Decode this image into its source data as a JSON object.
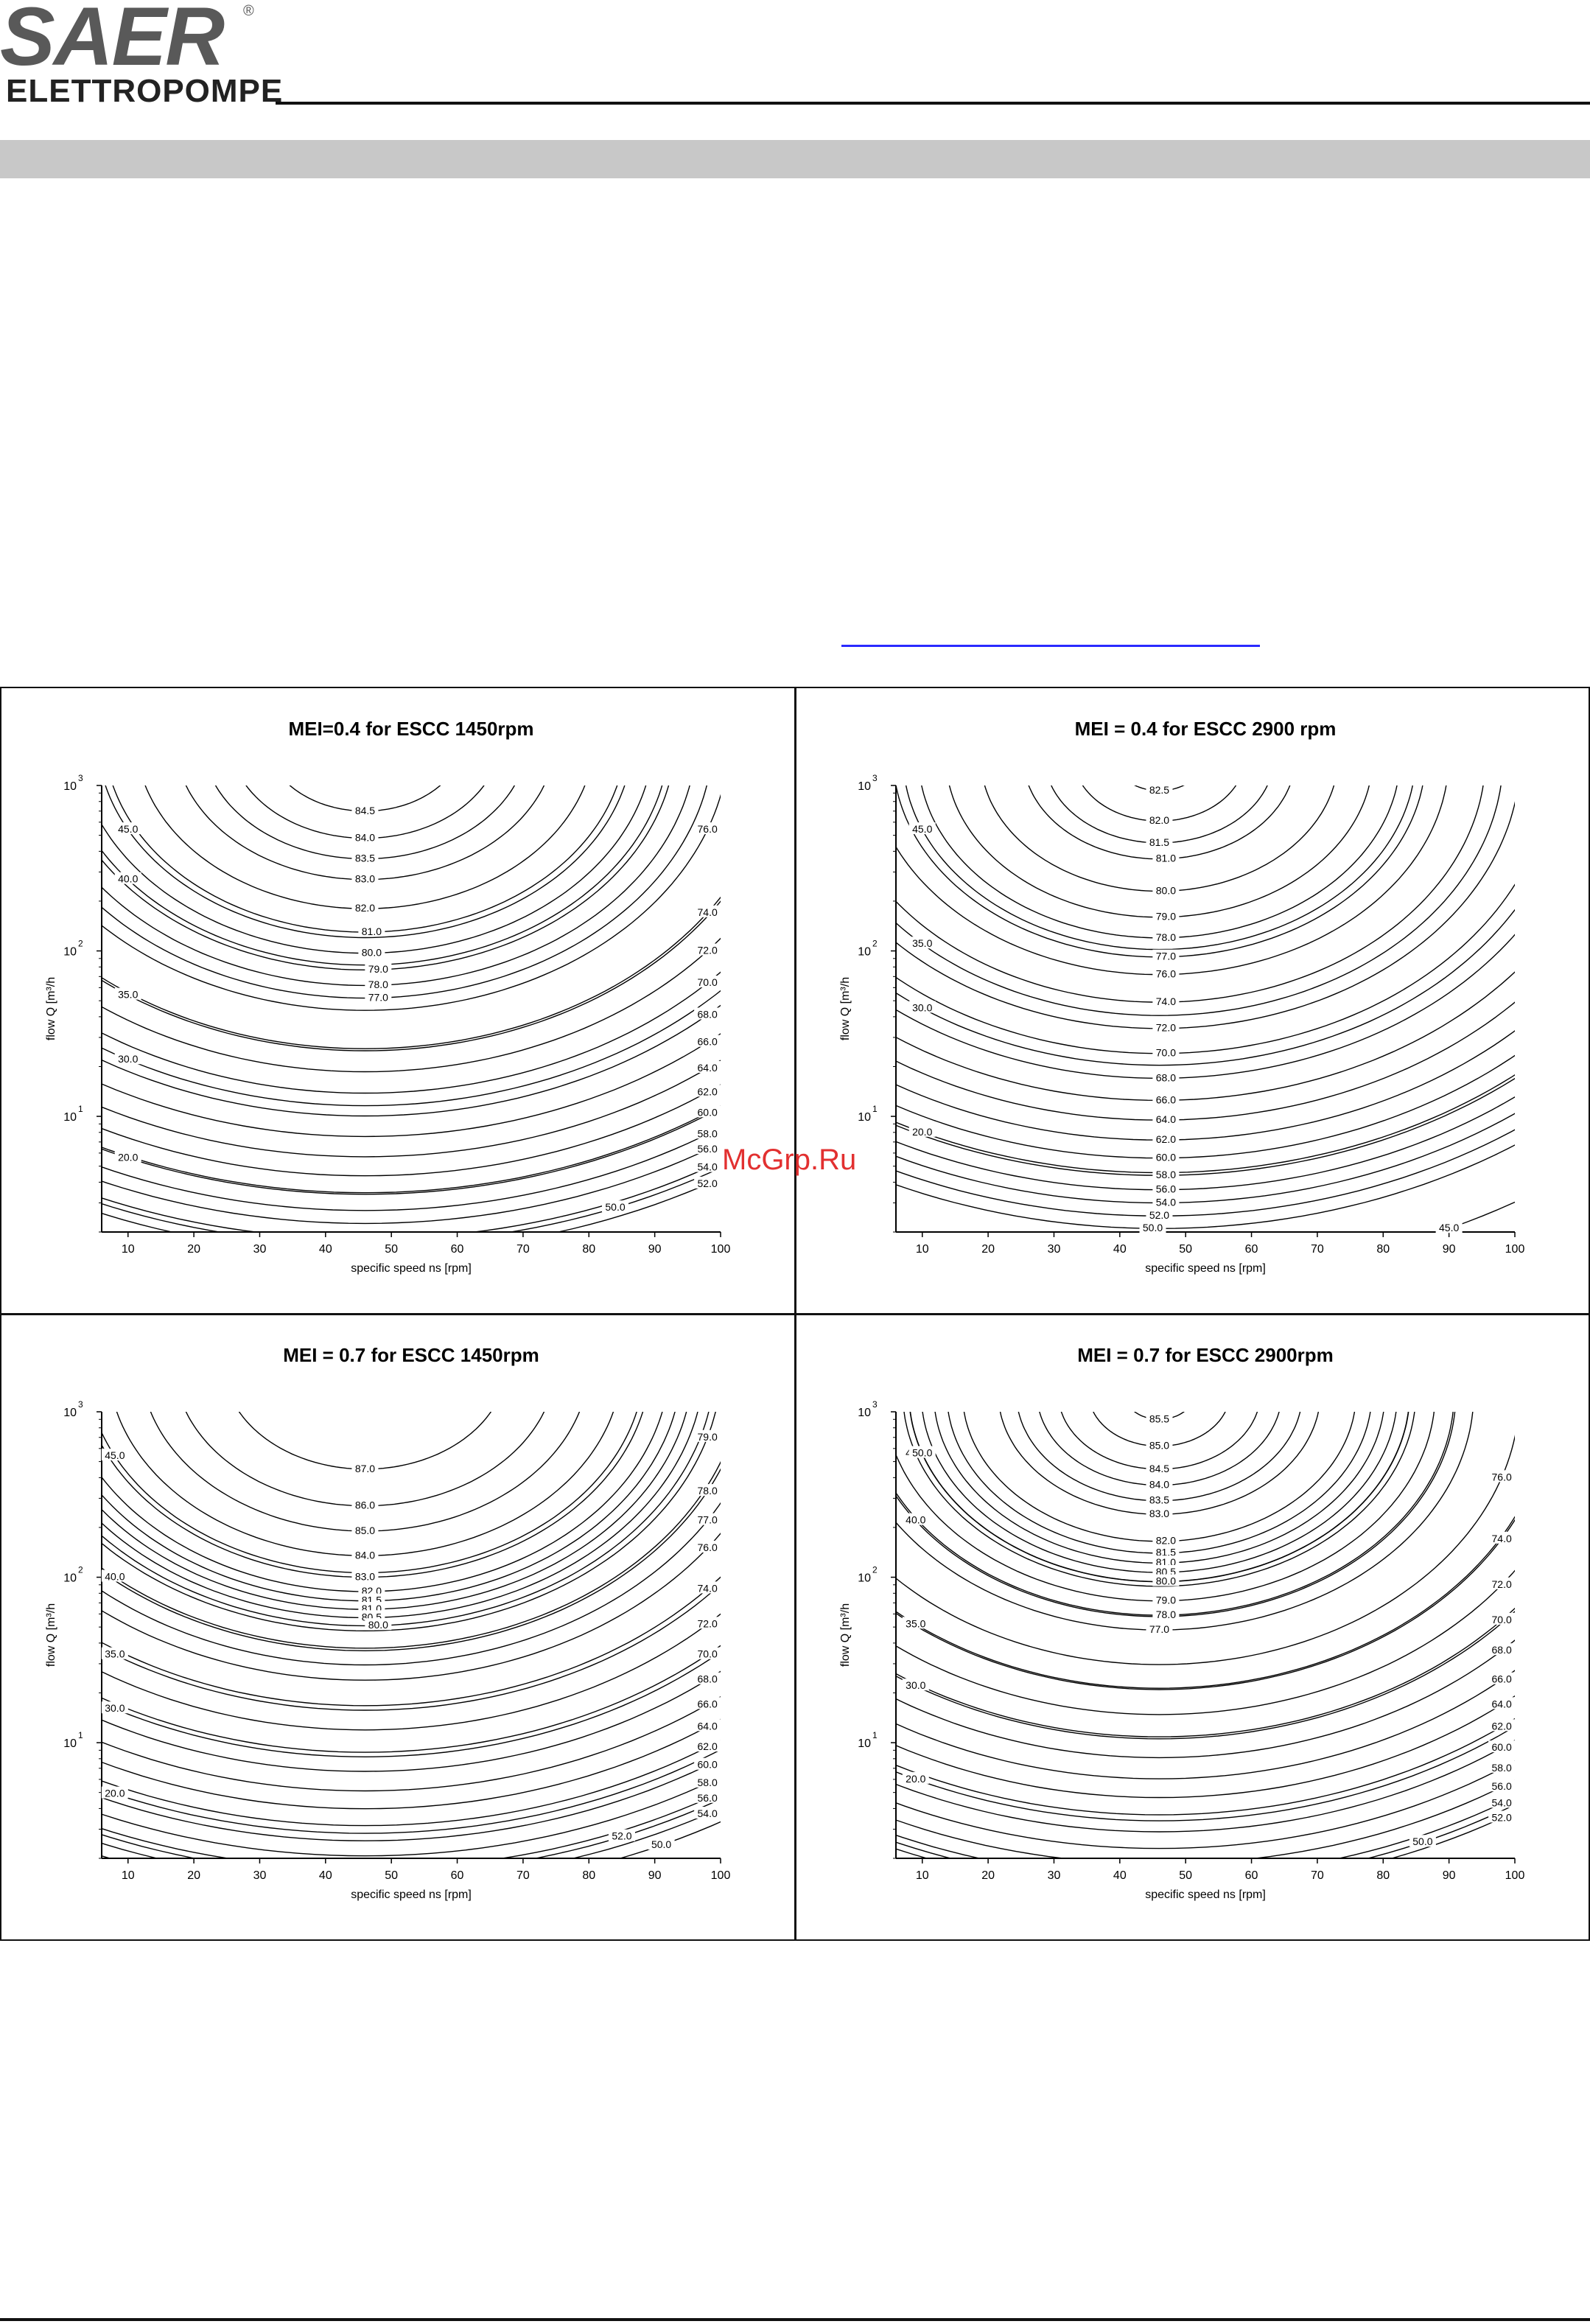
{
  "header": {
    "logo_text": "SAER",
    "logo_sub": "ELETTROPOMPE",
    "registered_mark": "®"
  },
  "watermark": "McGrp.Ru",
  "chart_data": [
    {
      "type": "contour",
      "title": "MEI=0.4 for ESCC 1450rpm",
      "xlabel": "specific speed ns [rpm]",
      "ylabel": "flow Q [m³/h",
      "xlim": [
        6,
        100
      ],
      "ylim": [
        2,
        1000
      ],
      "y_scale": "log",
      "x_ticks": [
        10,
        20,
        30,
        40,
        50,
        60,
        70,
        80,
        90,
        100
      ],
      "y_ticks": [
        {
          "base": "10",
          "exp": "1",
          "value": 10
        },
        {
          "base": "10",
          "exp": "2",
          "value": 100
        },
        {
          "base": "10",
          "exp": "3",
          "value": 1000
        }
      ],
      "optimum": {
        "ns": 46,
        "q": 2000
      },
      "contour_labels": [
        {
          "text": "84.5",
          "ns": 46,
          "q": 700
        },
        {
          "text": "84.0",
          "ns": 46,
          "q": 480
        },
        {
          "text": "83.5",
          "ns": 46,
          "q": 360
        },
        {
          "text": "83.0",
          "ns": 46,
          "q": 270
        },
        {
          "text": "82.0",
          "ns": 46,
          "q": 180
        },
        {
          "text": "81.0",
          "ns": 47,
          "q": 130
        },
        {
          "text": "80.0",
          "ns": 47,
          "q": 97
        },
        {
          "text": "79.0",
          "ns": 48,
          "q": 77
        },
        {
          "text": "78.0",
          "ns": 48,
          "q": 62
        },
        {
          "text": "77.0",
          "ns": 48,
          "q": 52
        },
        {
          "text": "76.0",
          "ns": 98,
          "q": 540
        },
        {
          "text": "74.0",
          "ns": 98,
          "q": 170
        },
        {
          "text": "72.0",
          "ns": 98,
          "q": 100
        },
        {
          "text": "70.0",
          "ns": 98,
          "q": 64
        },
        {
          "text": "68.0",
          "ns": 98,
          "q": 41
        },
        {
          "text": "66.0",
          "ns": 98,
          "q": 28
        },
        {
          "text": "64.0",
          "ns": 98,
          "q": 19.5
        },
        {
          "text": "62.0",
          "ns": 98,
          "q": 14
        },
        {
          "text": "60.0",
          "ns": 98,
          "q": 10.5
        },
        {
          "text": "58.0",
          "ns": 98,
          "q": 7.8
        },
        {
          "text": "56.0",
          "ns": 98,
          "q": 6.3
        },
        {
          "text": "54.0",
          "ns": 98,
          "q": 4.9
        },
        {
          "text": "52.0",
          "ns": 98,
          "q": 3.9
        },
        {
          "text": "50.0",
          "ns": 84,
          "q": 2.8
        },
        {
          "text": "45.0",
          "ns": 10,
          "q": 540
        },
        {
          "text": "40.0",
          "ns": 10,
          "q": 270
        },
        {
          "text": "35.0",
          "ns": 10,
          "q": 54
        },
        {
          "text": "30.0",
          "ns": 10,
          "q": 22
        },
        {
          "text": "20.0",
          "ns": 10,
          "q": 5.6
        }
      ]
    },
    {
      "type": "contour",
      "title": "MEI = 0.4 for ESCC 2900 rpm",
      "xlabel": "specific speed ns [rpm]",
      "ylabel": "flow Q [m³/h",
      "xlim": [
        6,
        100
      ],
      "ylim": [
        2,
        1000
      ],
      "y_scale": "log",
      "x_ticks": [
        10,
        20,
        30,
        40,
        50,
        60,
        70,
        80,
        90,
        100
      ],
      "y_ticks": [
        {
          "base": "10",
          "exp": "1",
          "value": 10
        },
        {
          "base": "10",
          "exp": "2",
          "value": 100
        },
        {
          "base": "10",
          "exp": "3",
          "value": 1000
        }
      ],
      "optimum": {
        "ns": 46,
        "q": 1500
      },
      "contour_labels": [
        {
          "text": "82.5",
          "ns": 46,
          "q": 930
        },
        {
          "text": "82.0",
          "ns": 46,
          "q": 610
        },
        {
          "text": "81.5",
          "ns": 46,
          "q": 450
        },
        {
          "text": "81.0",
          "ns": 47,
          "q": 360
        },
        {
          "text": "80.0",
          "ns": 47,
          "q": 230
        },
        {
          "text": "79.0",
          "ns": 47,
          "q": 160
        },
        {
          "text": "78.0",
          "ns": 47,
          "q": 120
        },
        {
          "text": "77.0",
          "ns": 47,
          "q": 92
        },
        {
          "text": "76.0",
          "ns": 47,
          "q": 72
        },
        {
          "text": "74.0",
          "ns": 47,
          "q": 49
        },
        {
          "text": "72.0",
          "ns": 47,
          "q": 34
        },
        {
          "text": "70.0",
          "ns": 47,
          "q": 24
        },
        {
          "text": "68.0",
          "ns": 47,
          "q": 17
        },
        {
          "text": "66.0",
          "ns": 47,
          "q": 12.5
        },
        {
          "text": "64.0",
          "ns": 47,
          "q": 9.5
        },
        {
          "text": "62.0",
          "ns": 47,
          "q": 7.2
        },
        {
          "text": "60.0",
          "ns": 47,
          "q": 5.6
        },
        {
          "text": "58.0",
          "ns": 47,
          "q": 4.4
        },
        {
          "text": "56.0",
          "ns": 47,
          "q": 3.6
        },
        {
          "text": "54.0",
          "ns": 47,
          "q": 3.0
        },
        {
          "text": "52.0",
          "ns": 46,
          "q": 2.5
        },
        {
          "text": "50.0",
          "ns": 45,
          "q": 2.1
        },
        {
          "text": "45.0",
          "ns": 90,
          "q": 2.1
        },
        {
          "text": "45.0",
          "ns": 10,
          "q": 540
        },
        {
          "text": "35.0",
          "ns": 10,
          "q": 110
        },
        {
          "text": "30.0",
          "ns": 10,
          "q": 45
        },
        {
          "text": "20.0",
          "ns": 10,
          "q": 8
        }
      ]
    },
    {
      "type": "contour",
      "title": "MEI = 0.7 for ESCC 1450rpm",
      "xlabel": "specific speed ns [rpm]",
      "ylabel": "flow Q [m³/h",
      "xlim": [
        6,
        100
      ],
      "ylim": [
        2,
        1000
      ],
      "y_scale": "log",
      "x_ticks": [
        10,
        20,
        30,
        40,
        50,
        60,
        70,
        80,
        90,
        100
      ],
      "y_ticks": [
        {
          "base": "10",
          "exp": "1",
          "value": 10
        },
        {
          "base": "10",
          "exp": "2",
          "value": 100
        },
        {
          "base": "10",
          "exp": "3",
          "value": 1000
        }
      ],
      "optimum": {
        "ns": 46,
        "q": 2000
      },
      "contour_labels": [
        {
          "text": "87.0",
          "ns": 46,
          "q": 450
        },
        {
          "text": "86.0",
          "ns": 46,
          "q": 270
        },
        {
          "text": "85.0",
          "ns": 46,
          "q": 190
        },
        {
          "text": "84.0",
          "ns": 46,
          "q": 135
        },
        {
          "text": "83.0",
          "ns": 46,
          "q": 100
        },
        {
          "text": "82.0",
          "ns": 47,
          "q": 82
        },
        {
          "text": "81.5",
          "ns": 47,
          "q": 72
        },
        {
          "text": "81.0",
          "ns": 47,
          "q": 64
        },
        {
          "text": "80.5",
          "ns": 47,
          "q": 57
        },
        {
          "text": "80.0",
          "ns": 48,
          "q": 51
        },
        {
          "text": "79.0",
          "ns": 98,
          "q": 700
        },
        {
          "text": "78.0",
          "ns": 98,
          "q": 330
        },
        {
          "text": "77.0",
          "ns": 98,
          "q": 220
        },
        {
          "text": "76.0",
          "ns": 98,
          "q": 150
        },
        {
          "text": "74.0",
          "ns": 98,
          "q": 85
        },
        {
          "text": "72.0",
          "ns": 98,
          "q": 52
        },
        {
          "text": "70.0",
          "ns": 98,
          "q": 34
        },
        {
          "text": "68.0",
          "ns": 98,
          "q": 24
        },
        {
          "text": "66.0",
          "ns": 98,
          "q": 17
        },
        {
          "text": "64.0",
          "ns": 98,
          "q": 12.5
        },
        {
          "text": "62.0",
          "ns": 98,
          "q": 9.4
        },
        {
          "text": "60.0",
          "ns": 98,
          "q": 7.3
        },
        {
          "text": "58.0",
          "ns": 98,
          "q": 5.7
        },
        {
          "text": "56.0",
          "ns": 98,
          "q": 4.6
        },
        {
          "text": "54.0",
          "ns": 98,
          "q": 3.7
        },
        {
          "text": "52.0",
          "ns": 85,
          "q": 2.7
        },
        {
          "text": "50.0",
          "ns": 91,
          "q": 2.4
        },
        {
          "text": "45.0",
          "ns": 8,
          "q": 540
        },
        {
          "text": "40.0",
          "ns": 8,
          "q": 100
        },
        {
          "text": "35.0",
          "ns": 8,
          "q": 34
        },
        {
          "text": "30.0",
          "ns": 8,
          "q": 16
        },
        {
          "text": "20.0",
          "ns": 8,
          "q": 4.9
        }
      ]
    },
    {
      "type": "contour",
      "title": "MEI = 0.7 for ESCC 2900rpm",
      "xlabel": "specific speed ns [rpm]",
      "ylabel": "flow Q [m³/h",
      "xlim": [
        6,
        100
      ],
      "ylim": [
        2,
        1000
      ],
      "y_scale": "log",
      "x_ticks": [
        10,
        20,
        30,
        40,
        50,
        60,
        70,
        80,
        90,
        100
      ],
      "y_ticks": [
        {
          "base": "10",
          "exp": "1",
          "value": 10
        },
        {
          "base": "10",
          "exp": "2",
          "value": 100
        },
        {
          "base": "10",
          "exp": "3",
          "value": 1000
        }
      ],
      "optimum": {
        "ns": 46,
        "q": 1300
      },
      "contour_labels": [
        {
          "text": "85.5",
          "ns": 46,
          "q": 900
        },
        {
          "text": "85.0",
          "ns": 46,
          "q": 620
        },
        {
          "text": "84.5",
          "ns": 46,
          "q": 450
        },
        {
          "text": "84.0",
          "ns": 46,
          "q": 360
        },
        {
          "text": "83.5",
          "ns": 46,
          "q": 290
        },
        {
          "text": "83.0",
          "ns": 46,
          "q": 240
        },
        {
          "text": "82.0",
          "ns": 47,
          "q": 165
        },
        {
          "text": "81.5",
          "ns": 47,
          "q": 140
        },
        {
          "text": "81.0",
          "ns": 47,
          "q": 122
        },
        {
          "text": "80.5",
          "ns": 47,
          "q": 107
        },
        {
          "text": "80.0",
          "ns": 47,
          "q": 94
        },
        {
          "text": "79.0",
          "ns": 47,
          "q": 72
        },
        {
          "text": "78.0",
          "ns": 47,
          "q": 59
        },
        {
          "text": "77.0",
          "ns": 46,
          "q": 48
        },
        {
          "text": "76.0",
          "ns": 98,
          "q": 400
        },
        {
          "text": "74.0",
          "ns": 98,
          "q": 170
        },
        {
          "text": "72.0",
          "ns": 98,
          "q": 90
        },
        {
          "text": "70.0",
          "ns": 98,
          "q": 55
        },
        {
          "text": "68.0",
          "ns": 98,
          "q": 36
        },
        {
          "text": "66.0",
          "ns": 98,
          "q": 24
        },
        {
          "text": "64.0",
          "ns": 98,
          "q": 17
        },
        {
          "text": "62.0",
          "ns": 98,
          "q": 12.5
        },
        {
          "text": "60.0",
          "ns": 98,
          "q": 9.3
        },
        {
          "text": "58.0",
          "ns": 98,
          "q": 7.0
        },
        {
          "text": "56.0",
          "ns": 98,
          "q": 5.4
        },
        {
          "text": "54.0",
          "ns": 98,
          "q": 4.3
        },
        {
          "text": "52.0",
          "ns": 98,
          "q": 3.5
        },
        {
          "text": "50.0",
          "ns": 86,
          "q": 2.5
        },
        {
          "text": "45.0",
          "ns": 9,
          "q": 560
        },
        {
          "text": "50.0",
          "ns": 10,
          "q": 560
        },
        {
          "text": "40.0",
          "ns": 9,
          "q": 220
        },
        {
          "text": "35.0",
          "ns": 9,
          "q": 52
        },
        {
          "text": "30.0",
          "ns": 9,
          "q": 22
        },
        {
          "text": "20.0",
          "ns": 9,
          "q": 6
        }
      ]
    }
  ]
}
